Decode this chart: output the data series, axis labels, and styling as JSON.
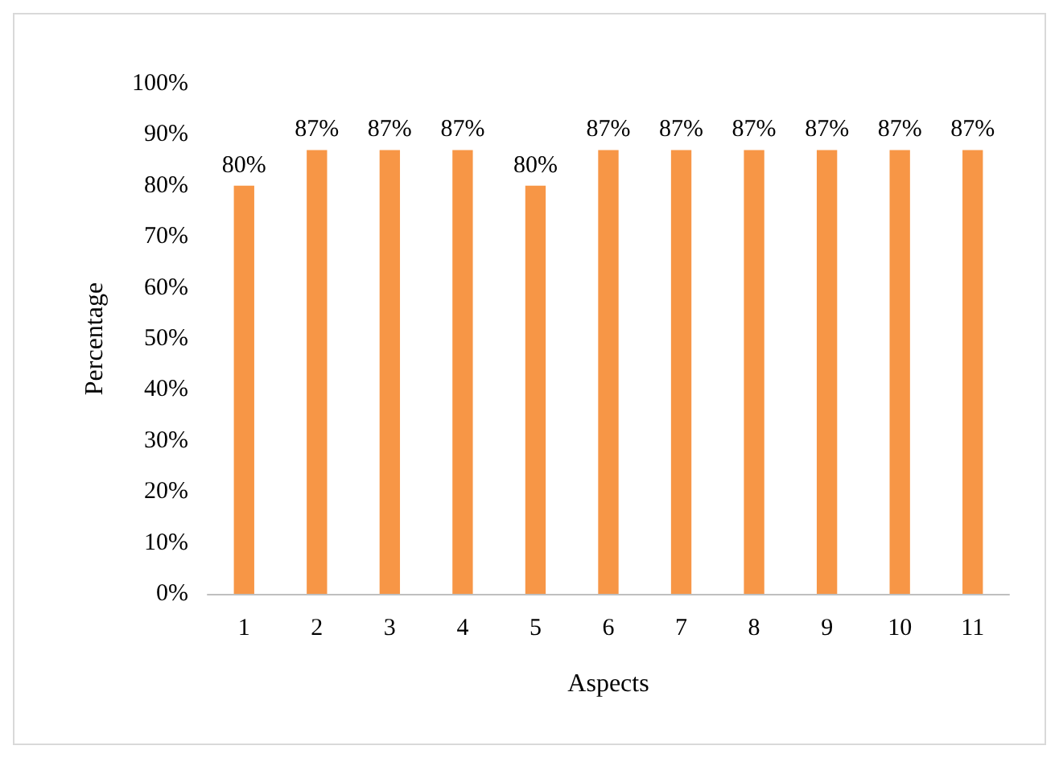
{
  "chart_data": {
    "type": "bar",
    "xlabel": "Aspects",
    "ylabel": "Percentage",
    "categories": [
      "1",
      "2",
      "3",
      "4",
      "5",
      "6",
      "7",
      "8",
      "9",
      "10",
      "11"
    ],
    "values": [
      80,
      87,
      87,
      87,
      80,
      87,
      87,
      87,
      87,
      87,
      87
    ],
    "value_labels": [
      "80%",
      "87%",
      "87%",
      "87%",
      "80%",
      "87%",
      "87%",
      "87%",
      "87%",
      "87%",
      "87%"
    ],
    "color": "#f79646",
    "ylim": [
      0,
      100
    ],
    "yticks": [
      {
        "value": 0,
        "label": "0%"
      },
      {
        "value": 10,
        "label": "10%"
      },
      {
        "value": 20,
        "label": "20%"
      },
      {
        "value": 30,
        "label": "30%"
      },
      {
        "value": 40,
        "label": "40%"
      },
      {
        "value": 50,
        "label": "50%"
      },
      {
        "value": 60,
        "label": "60%"
      },
      {
        "value": 70,
        "label": "70%"
      },
      {
        "value": 80,
        "label": "80%"
      },
      {
        "value": 90,
        "label": "90%"
      },
      {
        "value": 100,
        "label": "100%"
      }
    ],
    "grid": false
  }
}
